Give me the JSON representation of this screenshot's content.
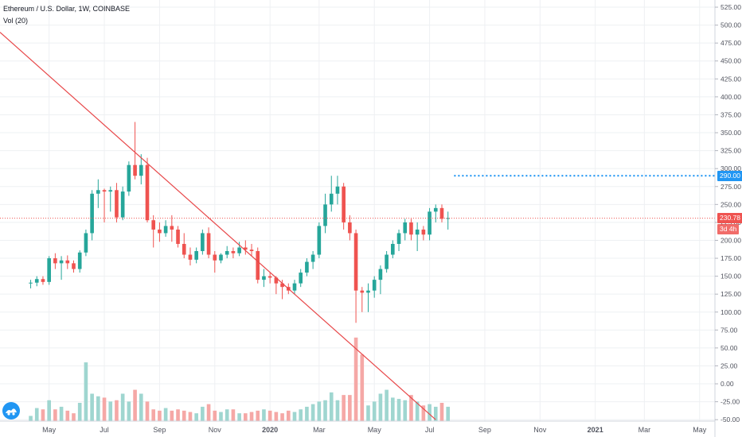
{
  "header": {
    "symbol_title": "Ethereum / U.S. Dollar, 1W, COINBASE",
    "volume_label": "Vol (20)"
  },
  "price_tags": {
    "target": "290.00",
    "last": "230.78",
    "countdown": "3d 4h"
  },
  "colors": {
    "up": "#26a69a",
    "down": "#ef5350",
    "vol_up": "#9fd6d0",
    "vol_down": "#f5a8a6",
    "trendline": "#e8484a",
    "target_line": "#2196f3",
    "grid": "#eef0f3",
    "axis_text": "#50535e"
  },
  "chart_data": {
    "type": "candlestick",
    "title": "Ethereum / U.S. Dollar, 1W, COINBASE",
    "y_axis": {
      "ticks": [
        -50,
        -25,
        0,
        25,
        50,
        75,
        100,
        125,
        150,
        175,
        200,
        225,
        250,
        275,
        300,
        325,
        350,
        375,
        400,
        425,
        450,
        475,
        500,
        525
      ],
      "tick_labels": [
        "-50.00",
        "-25.00",
        "0.00",
        "25.00",
        "50.00",
        "75.00",
        "100.00",
        "125.00",
        "150.00",
        "175.00",
        "200.00",
        "225.00",
        "250.00",
        "275.00",
        "300.00",
        "325.00",
        "350.00",
        "375.00",
        "400.00",
        "425.00",
        "450.00",
        "475.00",
        "500.00",
        "525.00"
      ],
      "range": [
        -52,
        535
      ]
    },
    "x_axis": {
      "labels": [
        "May",
        "Jul",
        "Sep",
        "Nov",
        "2020",
        "Mar",
        "May",
        "Jul",
        "Sep",
        "Nov",
        "2021",
        "Mar",
        "May"
      ],
      "label_weeks": [
        3,
        12,
        21,
        30,
        39,
        47,
        56,
        65,
        74,
        83,
        92,
        100,
        109
      ],
      "range_weeks": [
        -5,
        111.5
      ]
    },
    "candles": [
      [
        0,
        140,
        145,
        133,
        141
      ],
      [
        1,
        141,
        150,
        136,
        146
      ],
      [
        2,
        146,
        150,
        138,
        142
      ],
      [
        3,
        142,
        178,
        138,
        175
      ],
      [
        4,
        175,
        182,
        160,
        168
      ],
      [
        5,
        168,
        178,
        145,
        172
      ],
      [
        6,
        172,
        179,
        160,
        168
      ],
      [
        7,
        168,
        172,
        155,
        160
      ],
      [
        8,
        160,
        186,
        155,
        183
      ],
      [
        9,
        183,
        215,
        178,
        210
      ],
      [
        10,
        210,
        270,
        200,
        265
      ],
      [
        11,
        265,
        285,
        245,
        270
      ],
      [
        12,
        270,
        272,
        225,
        268
      ],
      [
        13,
        268,
        275,
        240,
        270
      ],
      [
        14,
        270,
        280,
        225,
        232
      ],
      [
        15,
        232,
        275,
        228,
        268
      ],
      [
        16,
        268,
        310,
        262,
        305
      ],
      [
        17,
        305,
        365,
        285,
        290
      ],
      [
        18,
        290,
        320,
        278,
        305
      ],
      [
        19,
        305,
        315,
        225,
        228
      ],
      [
        20,
        228,
        235,
        190,
        215
      ],
      [
        21,
        215,
        225,
        198,
        210
      ],
      [
        22,
        210,
        228,
        205,
        220
      ],
      [
        23,
        220,
        235,
        198,
        215
      ],
      [
        24,
        215,
        220,
        190,
        195
      ],
      [
        25,
        195,
        210,
        175,
        180
      ],
      [
        26,
        180,
        190,
        165,
        173
      ],
      [
        27,
        173,
        190,
        168,
        185
      ],
      [
        28,
        185,
        215,
        180,
        210
      ],
      [
        29,
        210,
        218,
        175,
        180
      ],
      [
        30,
        180,
        185,
        155,
        172
      ],
      [
        31,
        172,
        182,
        168,
        180
      ],
      [
        32,
        180,
        192,
        175,
        185
      ],
      [
        33,
        185,
        190,
        175,
        182
      ],
      [
        34,
        182,
        198,
        178,
        190
      ],
      [
        35,
        190,
        200,
        180,
        187
      ],
      [
        36,
        187,
        195,
        178,
        185
      ],
      [
        37,
        185,
        190,
        140,
        145
      ],
      [
        38,
        145,
        160,
        135,
        150
      ],
      [
        39,
        150,
        155,
        140,
        148
      ],
      [
        40,
        148,
        150,
        125,
        140
      ],
      [
        41,
        140,
        145,
        118,
        135
      ],
      [
        42,
        135,
        140,
        125,
        130
      ],
      [
        43,
        130,
        145,
        125,
        140
      ],
      [
        44,
        140,
        160,
        135,
        155
      ],
      [
        45,
        155,
        175,
        150,
        170
      ],
      [
        46,
        170,
        185,
        160,
        180
      ],
      [
        47,
        180,
        225,
        175,
        220
      ],
      [
        48,
        220,
        265,
        210,
        250
      ],
      [
        49,
        250,
        290,
        240,
        265
      ],
      [
        50,
        265,
        290,
        250,
        275
      ],
      [
        51,
        275,
        280,
        215,
        225
      ],
      [
        52,
        225,
        235,
        200,
        210
      ],
      [
        53,
        210,
        215,
        85,
        130
      ],
      [
        54,
        130,
        135,
        100,
        127
      ],
      [
        55,
        127,
        140,
        100,
        130
      ],
      [
        56,
        130,
        150,
        120,
        145
      ],
      [
        57,
        145,
        165,
        125,
        160
      ],
      [
        58,
        160,
        185,
        155,
        180
      ],
      [
        59,
        180,
        200,
        175,
        195
      ],
      [
        60,
        195,
        215,
        185,
        210
      ],
      [
        61,
        210,
        230,
        200,
        225
      ],
      [
        62,
        225,
        230,
        200,
        208
      ],
      [
        63,
        208,
        225,
        185,
        215
      ],
      [
        64,
        215,
        220,
        200,
        208
      ],
      [
        65,
        208,
        245,
        200,
        240
      ],
      [
        66,
        240,
        250,
        225,
        245
      ],
      [
        67,
        245,
        250,
        225,
        230
      ],
      [
        68,
        230,
        240,
        215,
        231
      ]
    ],
    "volume": {
      "axis_label": "Vol (20)",
      "values": [
        8,
        20,
        18,
        32,
        18,
        22,
        16,
        12,
        28,
        90,
        42,
        38,
        36,
        30,
        32,
        42,
        30,
        48,
        42,
        30,
        18,
        16,
        20,
        16,
        18,
        16,
        14,
        12,
        22,
        26,
        16,
        14,
        18,
        18,
        12,
        12,
        14,
        16,
        18,
        16,
        14,
        12,
        16,
        14,
        18,
        22,
        26,
        30,
        32,
        44,
        32,
        40,
        40,
        128,
        102,
        24,
        30,
        42,
        48,
        36,
        34,
        32,
        40,
        30,
        24,
        26,
        22,
        28,
        22
      ],
      "range_max": 140
    },
    "trendline": {
      "from": [
        -5,
        490
      ],
      "to": [
        66,
        -50
      ]
    },
    "target_level": {
      "value": 290,
      "from_week": 69
    },
    "last_price": 230.78
  }
}
